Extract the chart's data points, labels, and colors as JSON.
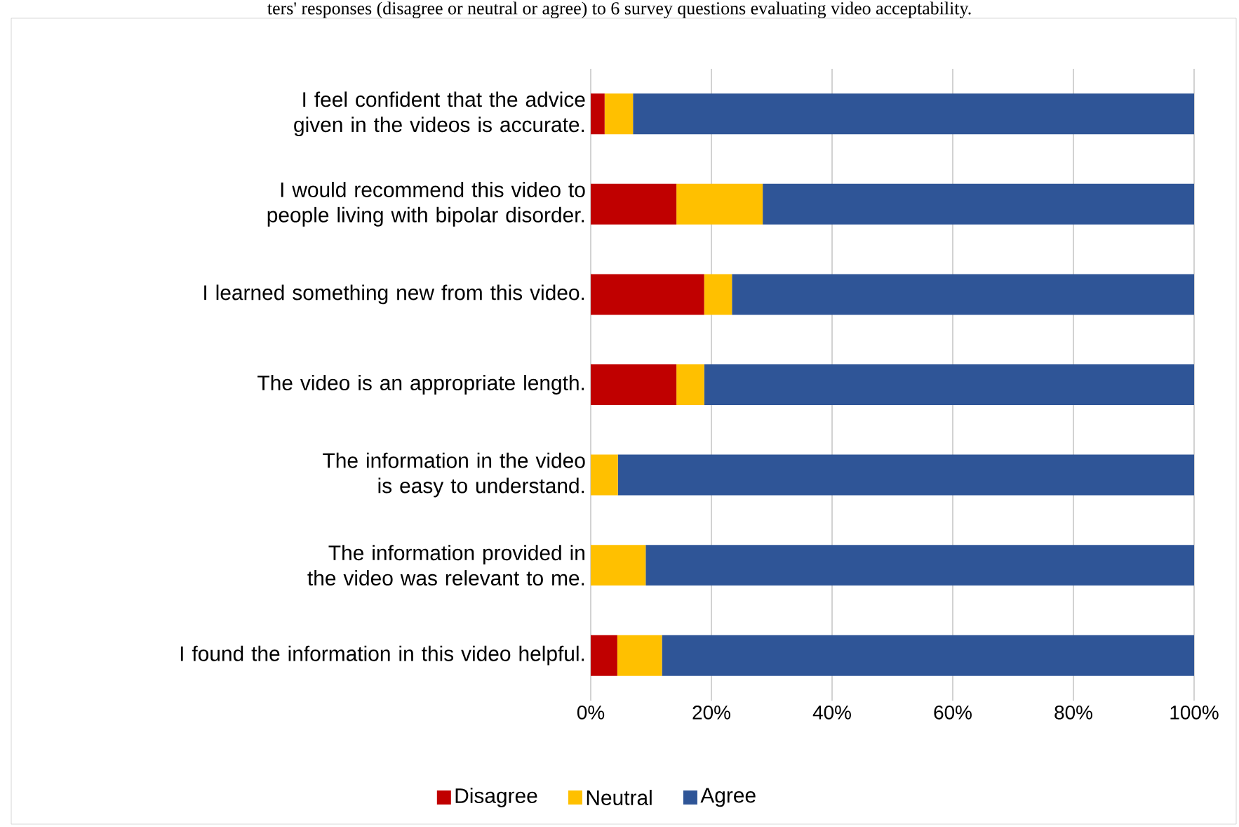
{
  "chart_data": {
    "type": "bar",
    "orientation": "horizontal",
    "stacked": true,
    "title": "ters' responses (disagree or neutral or agree) to 6 survey questions evaluating video acceptability.",
    "categories": [
      "I feel confident that the advice given in the videos is accurate.",
      "I would recommend this video to people living with bipolar disorder.",
      "I learned something new from this video.",
      "The video is an appropriate length.",
      "The information in the video is easy to understand.",
      "The information provided in the video was relevant to me.",
      "I found the information in this video helpful."
    ],
    "series": [
      {
        "name": "Disagree",
        "color": "#c00000",
        "values": [
          2.3,
          14.2,
          18.8,
          14.2,
          0,
          0,
          4.4
        ]
      },
      {
        "name": "Neutral",
        "color": "#ffc000",
        "values": [
          4.7,
          14.3,
          4.6,
          4.6,
          4.5,
          9.1,
          7.4
        ]
      },
      {
        "name": "Agree",
        "color": "#2f5597",
        "values": [
          93.0,
          71.5,
          76.6,
          81.2,
          95.5,
          90.9,
          88.2
        ]
      }
    ],
    "xlim": [
      0,
      100
    ],
    "xticks": [
      {
        "value": 0,
        "label": "0%"
      },
      {
        "value": 20,
        "label": "20%"
      },
      {
        "value": 40,
        "label": "40%"
      },
      {
        "value": 60,
        "label": "60%"
      },
      {
        "value": 80,
        "label": "80%"
      },
      {
        "value": 100,
        "label": "100%"
      }
    ],
    "grid": "x",
    "legend": "bottom"
  }
}
